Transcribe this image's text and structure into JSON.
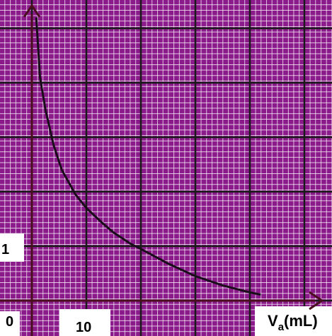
{
  "chart_data": {
    "type": "line",
    "title": "",
    "xlabel": {
      "main": "V",
      "sub": "a",
      "rest": "(mL)"
    },
    "ylabel": "",
    "x_tick_labels": {
      "origin": "0",
      "ten": "10"
    },
    "y_tick_labels": {
      "one": "1"
    },
    "xlim": [
      0,
      50
    ],
    "ylim": [
      0,
      5
    ],
    "grid": true,
    "colors": {
      "paper": "#8b1a8b",
      "minor_grid": "#ffffff",
      "major_grid": "#1a1a1a",
      "axes": "#4a0f1e",
      "curve": "#1a0d1a"
    },
    "series": [
      {
        "x": [
          0.8,
          1.5,
          2.5,
          4,
          5.5,
          8,
          10,
          13,
          15,
          18,
          20,
          25,
          30,
          35,
          40,
          42
        ],
        "y": [
          5.2,
          4.1,
          3.5,
          2.85,
          2.4,
          1.95,
          1.7,
          1.42,
          1.25,
          1.05,
          0.95,
          0.68,
          0.45,
          0.28,
          0.15,
          0.11
        ]
      }
    ]
  }
}
